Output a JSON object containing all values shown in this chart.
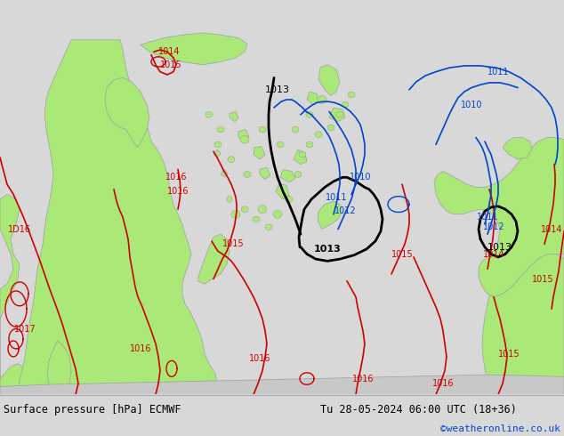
{
  "title_left": "Surface pressure [hPa] ECMWF",
  "title_right": "Tu 28-05-2024 06:00 UTC (18+36)",
  "copyright": "©weatheronline.co.uk",
  "bg_water": "#d8d8d8",
  "land_green": "#aae878",
  "land_gray": "#c8c8c8",
  "coast_color": "#a0a0a0",
  "red": "#cc0000",
  "black": "#000000",
  "blue": "#0044cc",
  "footer_bg": "#e0e0e0",
  "footer_line": "#aaaaaa"
}
